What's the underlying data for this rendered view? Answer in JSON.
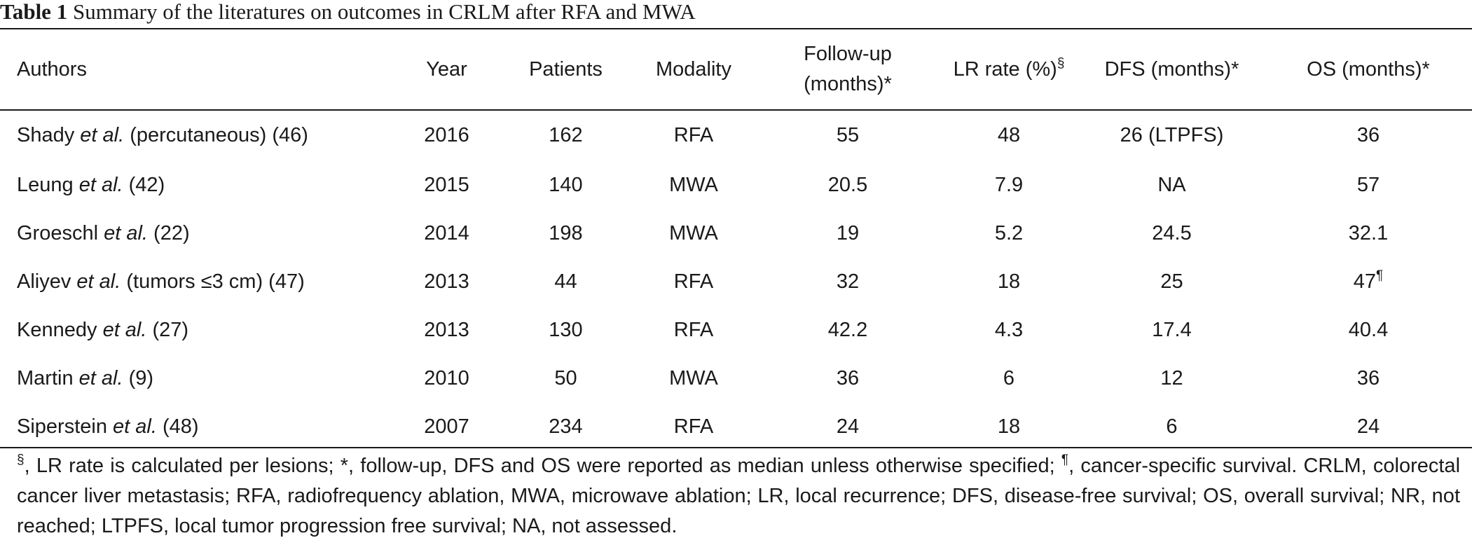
{
  "caption": {
    "label": "Table 1",
    "title": "Summary of the literatures on outcomes in CRLM after RFA and MWA"
  },
  "table": {
    "headers": {
      "authors": "Authors",
      "year": "Year",
      "patients": "Patients",
      "modality": "Modality",
      "followup_line1": "Follow-up",
      "followup_line2": "(months)*",
      "lr_rate": "LR rate (%)",
      "lr_rate_mark": "§",
      "dfs": "DFS (months)*",
      "os": "OS (months)*"
    },
    "rows": [
      {
        "author": "Shady",
        "etal": "et al.",
        "note": " (percutaneous) (46)",
        "year": "2016",
        "patients": "162",
        "modality": "RFA",
        "followup": "55",
        "lr_rate": "48",
        "dfs": "26 (LTPFS)",
        "os": "36",
        "os_mark": ""
      },
      {
        "author": "Leung",
        "etal": "et al.",
        "note": " (42)",
        "year": "2015",
        "patients": "140",
        "modality": "MWA",
        "followup": "20.5",
        "lr_rate": "7.9",
        "dfs": "NA",
        "os": "57",
        "os_mark": ""
      },
      {
        "author": "Groeschl",
        "etal": "et al.",
        "note": " (22)",
        "year": "2014",
        "patients": "198",
        "modality": "MWA",
        "followup": "19",
        "lr_rate": "5.2",
        "dfs": "24.5",
        "os": "32.1",
        "os_mark": ""
      },
      {
        "author": "Aliyev",
        "etal": "et al.",
        "note": " (tumors ≤3 cm) (47)",
        "year": "2013",
        "patients": "44",
        "modality": "RFA",
        "followup": "32",
        "lr_rate": "18",
        "dfs": "25",
        "os": "47",
        "os_mark": "¶"
      },
      {
        "author": "Kennedy",
        "etal": "et al.",
        "note": " (27)",
        "year": "2013",
        "patients": "130",
        "modality": "RFA",
        "followup": "42.2",
        "lr_rate": "4.3",
        "dfs": "17.4",
        "os": "40.4",
        "os_mark": ""
      },
      {
        "author": "Martin",
        "etal": "et al.",
        "note": " (9)",
        "year": "2010",
        "patients": "50",
        "modality": "MWA",
        "followup": "36",
        "lr_rate": "6",
        "dfs": "12",
        "os": "36",
        "os_mark": ""
      },
      {
        "author": "Siperstein",
        "etal": "et al.",
        "note": " (48)",
        "year": "2007",
        "patients": "234",
        "modality": "RFA",
        "followup": "24",
        "lr_rate": "18",
        "dfs": "6",
        "os": "24",
        "os_mark": ""
      }
    ]
  },
  "footnote": {
    "mark_section": "§",
    "part1": ", LR rate is calculated per lesions; *, follow-up, DFS and OS were reported as median unless otherwise specified; ",
    "mark_pilcrow": "¶",
    "part2": ", cancer-specific survival. CRLM, colorectal cancer liver metastasis; RFA, radiofrequency ablation, MWA, microwave ablation; LR, local recurrence; DFS, disease-free survival; OS, overall survival; NR, not reached; LTPFS, local tumor progression free survival; NA, not assessed."
  }
}
